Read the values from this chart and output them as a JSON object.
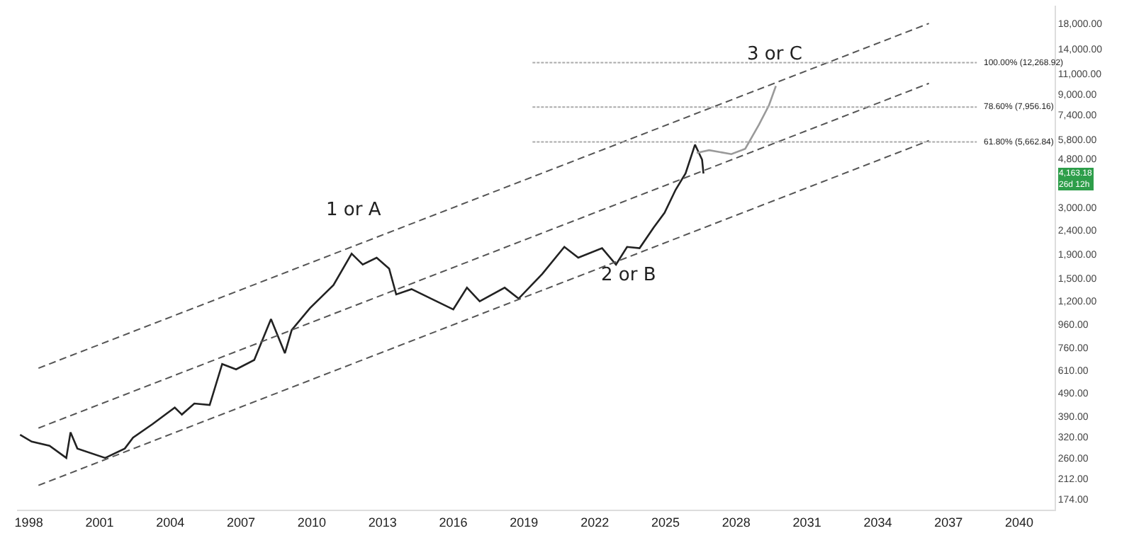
{
  "chart_data": {
    "type": "line",
    "log": "y",
    "xlim": [
      1997.5,
      2041.5
    ],
    "xticks": [
      1998,
      2001,
      2004,
      2007,
      2010,
      2013,
      2016,
      2019,
      2022,
      2025,
      2028,
      2031,
      2034,
      2037,
      2040
    ],
    "ylim": [
      157,
      21400
    ],
    "yticks": [
      {
        "value": 18000,
        "label": "18,000.00"
      },
      {
        "value": 14000,
        "label": "14,000.00"
      },
      {
        "value": 11000,
        "label": "11,000.00"
      },
      {
        "value": 9000,
        "label": "9,000.00"
      },
      {
        "value": 7400,
        "label": "7,400.00"
      },
      {
        "value": 5800,
        "label": "5,800.00"
      },
      {
        "value": 4800,
        "label": "4,800.00"
      },
      {
        "value": 3000,
        "label": "3,000.00"
      },
      {
        "value": 2400,
        "label": "2,400.00"
      },
      {
        "value": 1900,
        "label": "1,900.00"
      },
      {
        "value": 1500,
        "label": "1,500.00"
      },
      {
        "value": 1200,
        "label": "1,200.00"
      },
      {
        "value": 960,
        "label": "960.00"
      },
      {
        "value": 760,
        "label": "760.00"
      },
      {
        "value": 610,
        "label": "610.00"
      },
      {
        "value": 490,
        "label": "490.00"
      },
      {
        "value": 390,
        "label": "390.00"
      },
      {
        "value": 320,
        "label": "320.00"
      },
      {
        "value": 260,
        "label": "260.00"
      },
      {
        "value": 212,
        "label": "212.00"
      },
      {
        "value": 174,
        "label": "174.00"
      }
    ],
    "series": [
      {
        "color": "#222222",
        "line_style": "solid",
        "x": [
          1997.63,
          1998.12,
          1998.88,
          1999.59,
          1999.77,
          2000.06,
          2001.24,
          2002.07,
          2002.42,
          2003.25,
          2004.19,
          2004.49,
          2005.02,
          2005.67,
          2006.2,
          2006.79,
          2007.56,
          2008.27,
          2008.86,
          2009.15,
          2009.92,
          2010.92,
          2011.69,
          2012.16,
          2012.75,
          2013.28,
          2013.58,
          2014.23,
          2015.06,
          2016.0,
          2016.58,
          2017.12,
          2018.18,
          2018.77,
          2019.77,
          2020.71,
          2021.3,
          2022.31,
          2022.9,
          2023.37,
          2023.9,
          2024.49,
          2024.96,
          2025.43,
          2025.85,
          2026.25,
          2026.55,
          2026.61
        ],
        "values": [
          326,
          305,
          293,
          260,
          334,
          285,
          260,
          285,
          317,
          362,
          425,
          397,
          442,
          436,
          650,
          617,
          676,
          1007,
          722,
          906,
          1120,
          1403,
          1905,
          1714,
          1832,
          1648,
          1281,
          1349,
          1230,
          1107,
          1368,
          1197,
          1368,
          1230,
          1563,
          2036,
          1832,
          2011,
          1714,
          2036,
          2011,
          2455,
          2840,
          3556,
          4170,
          5520,
          4768,
          4163.18
        ]
      },
      {
        "color": "#9a9a9a",
        "line_style": "solid",
        "x": [
          2026.32,
          2026.85,
          2027.79,
          2028.38,
          2028.97,
          2029.39,
          2029.68
        ],
        "values": [
          5090,
          5230,
          5030,
          5300,
          6730,
          8110,
          9780
        ]
      },
      {
        "color": "#555555",
        "line_style": "dashed",
        "x": [
          1998.41,
          2036.17
        ],
        "values": [
          624,
          18000
        ]
      },
      {
        "color": "#555555",
        "line_style": "dashed",
        "x": [
          1998.41,
          2036.17
        ],
        "values": [
          348,
          10030
        ]
      },
      {
        "color": "#555555",
        "line_style": "dashed",
        "x": [
          1998.41,
          2036.17
        ],
        "values": [
          199,
          5740
        ]
      },
      {
        "color": "#aaaaaa",
        "line_style": "dotted",
        "x": [
          2019.36,
          2038.2
        ],
        "values": [
          12268.92,
          12268.92
        ]
      },
      {
        "color": "#aaaaaa",
        "line_style": "dotted",
        "x": [
          2019.36,
          2038.2
        ],
        "values": [
          7956.16,
          7956.16
        ]
      },
      {
        "color": "#aaaaaa",
        "line_style": "dotted",
        "x": [
          2019.36,
          2038.2
        ],
        "values": [
          5662.84,
          5662.84
        ]
      }
    ],
    "annotations": [
      "100.00% (12,268.92)",
      "78.60% (7,956.16)",
      "61.80% (5,662.84)",
      "1 or A",
      "2 or B",
      "3 or C",
      "4,163.18",
      "26d 12h"
    ]
  }
}
